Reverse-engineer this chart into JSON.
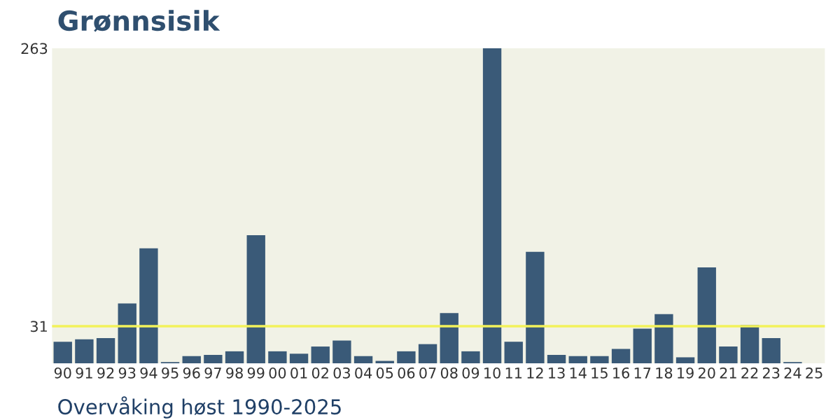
{
  "chart_data": {
    "type": "bar",
    "title": "Grønnsisik",
    "categories": [
      "90",
      "91",
      "92",
      "93",
      "94",
      "95",
      "96",
      "97",
      "98",
      "99",
      "00",
      "01",
      "02",
      "03",
      "04",
      "05",
      "06",
      "07",
      "08",
      "09",
      "10",
      "11",
      "12",
      "13",
      "14",
      "15",
      "16",
      "17",
      "18",
      "19",
      "20",
      "21",
      "22",
      "23",
      "24",
      "25"
    ],
    "values": [
      18,
      20,
      21,
      50,
      96,
      1,
      6,
      7,
      10,
      107,
      10,
      8,
      14,
      19,
      6,
      2,
      10,
      16,
      42,
      10,
      263,
      18,
      93,
      7,
      6,
      6,
      12,
      29,
      41,
      5,
      80,
      14,
      32,
      21,
      1,
      0
    ],
    "color": "#3a5a78",
    "ylim": [
      0,
      263
    ],
    "yticks": [
      31,
      263
    ],
    "ref_lines": [
      {
        "axis": "y",
        "value": 31,
        "color": "#f2f25a"
      }
    ],
    "annotations": [
      "Overvåking høst 1990-2025"
    ],
    "grid": false,
    "legend": false
  }
}
